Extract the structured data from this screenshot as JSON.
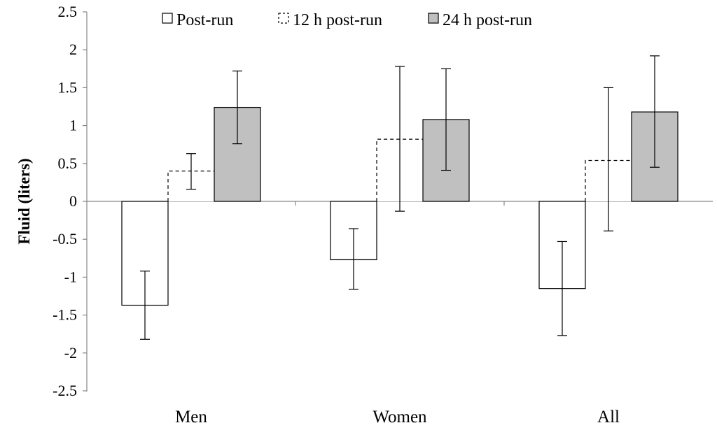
{
  "chart_data": {
    "type": "bar",
    "title": "",
    "xlabel": "",
    "ylabel": "Fluid (liters)",
    "ylim": [
      -2.5,
      2.5
    ],
    "yticks": [
      2.5,
      2,
      1.5,
      1,
      0.5,
      0,
      -0.5,
      -1,
      -1.5,
      -2,
      -2.5
    ],
    "ytick_labels": [
      "2.5",
      "2",
      "1.5",
      "1",
      "0.5",
      "0",
      "-0.5",
      "-1",
      "-1.5",
      "-2",
      "-2.5"
    ],
    "categories": [
      "Men",
      "Women",
      "All"
    ],
    "legend_position": "top",
    "series": [
      {
        "name": "Post-run",
        "values": [
          -1.37,
          -0.77,
          -1.15
        ],
        "err_low": [
          -1.82,
          -1.16,
          -1.77
        ],
        "err_high": [
          -0.92,
          -0.36,
          -0.53
        ],
        "style": "outline",
        "fill": "#ffffff"
      },
      {
        "name": "12 h post-run",
        "values": [
          0.4,
          0.82,
          0.54
        ],
        "err_low": [
          0.16,
          -0.13,
          -0.39
        ],
        "err_high": [
          0.63,
          1.78,
          1.5
        ],
        "style": "dashed",
        "fill": "#ffffff"
      },
      {
        "name": "24 h post-run",
        "values": [
          1.24,
          1.08,
          1.18
        ],
        "err_low": [
          0.76,
          0.41,
          0.45
        ],
        "err_high": [
          1.72,
          1.75,
          1.92
        ],
        "style": "filled",
        "fill": "#c0c0c0"
      }
    ]
  }
}
